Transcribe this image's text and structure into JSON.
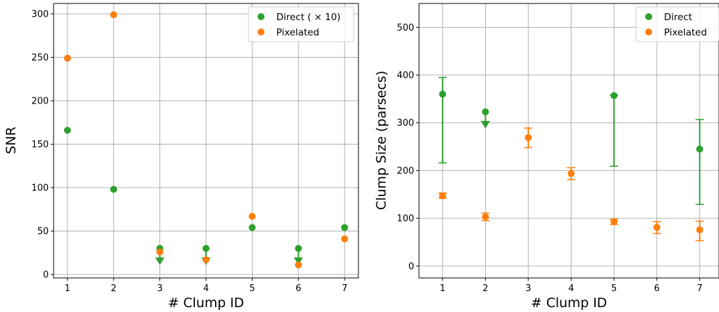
{
  "chart_data": [
    {
      "type": "scatter",
      "xlabel": "# Clump ID",
      "ylabel": "SNR",
      "xlim": [
        0.7,
        7.3
      ],
      "ylim": [
        -4,
        312
      ],
      "xticks": [
        1,
        2,
        3,
        4,
        5,
        6,
        7
      ],
      "yticks": [
        0,
        50,
        100,
        150,
        200,
        250,
        300
      ],
      "grid": true,
      "legend_position": "top-right",
      "series": [
        {
          "name": "Direct ( × 10)",
          "color": "#2ca02c",
          "x": [
            1,
            2,
            3,
            4,
            5,
            6,
            7
          ],
          "y": [
            166,
            98,
            30,
            30,
            54,
            30,
            54
          ],
          "upper_limit": [
            false,
            false,
            true,
            true,
            false,
            true,
            false
          ]
        },
        {
          "name": "Pixelated",
          "color": "#ff7f0e",
          "x": [
            1,
            2,
            3,
            4,
            5,
            6,
            7
          ],
          "y": [
            249,
            299,
            26,
            17,
            67,
            11,
            41
          ],
          "upper_limit": [
            false,
            false,
            false,
            false,
            false,
            false,
            false
          ]
        }
      ]
    },
    {
      "type": "scatter",
      "xlabel": "# Clump ID",
      "ylabel": "Clump Size (parsecs)",
      "xlim": [
        0.45,
        7.45
      ],
      "ylim": [
        -25,
        550
      ],
      "xticks": [
        1,
        2,
        3,
        4,
        5,
        6,
        7
      ],
      "yticks": [
        0,
        100,
        200,
        300,
        400,
        500
      ],
      "grid": true,
      "legend_position": "top-right",
      "series": [
        {
          "name": "Direct",
          "color": "#2ca02c",
          "x": [
            1,
            2,
            5,
            7
          ],
          "y": [
            360,
            323,
            357,
            245
          ],
          "err_low": [
            216,
            null,
            209,
            129
          ],
          "err_high": [
            395,
            null,
            358,
            307
          ],
          "upper_limit": [
            false,
            true,
            false,
            false
          ]
        },
        {
          "name": "Pixelated",
          "color": "#ff7f0e",
          "x": [
            1,
            2,
            3,
            4,
            5,
            6,
            7
          ],
          "y": [
            147,
            103,
            269,
            194,
            93,
            81,
            76
          ],
          "err_low": [
            142,
            95,
            248,
            181,
            87,
            68,
            53
          ],
          "err_high": [
            153,
            111,
            289,
            206,
            98,
            93,
            94
          ],
          "upper_limit": [
            false,
            false,
            false,
            false,
            false,
            false,
            false
          ]
        }
      ]
    }
  ]
}
